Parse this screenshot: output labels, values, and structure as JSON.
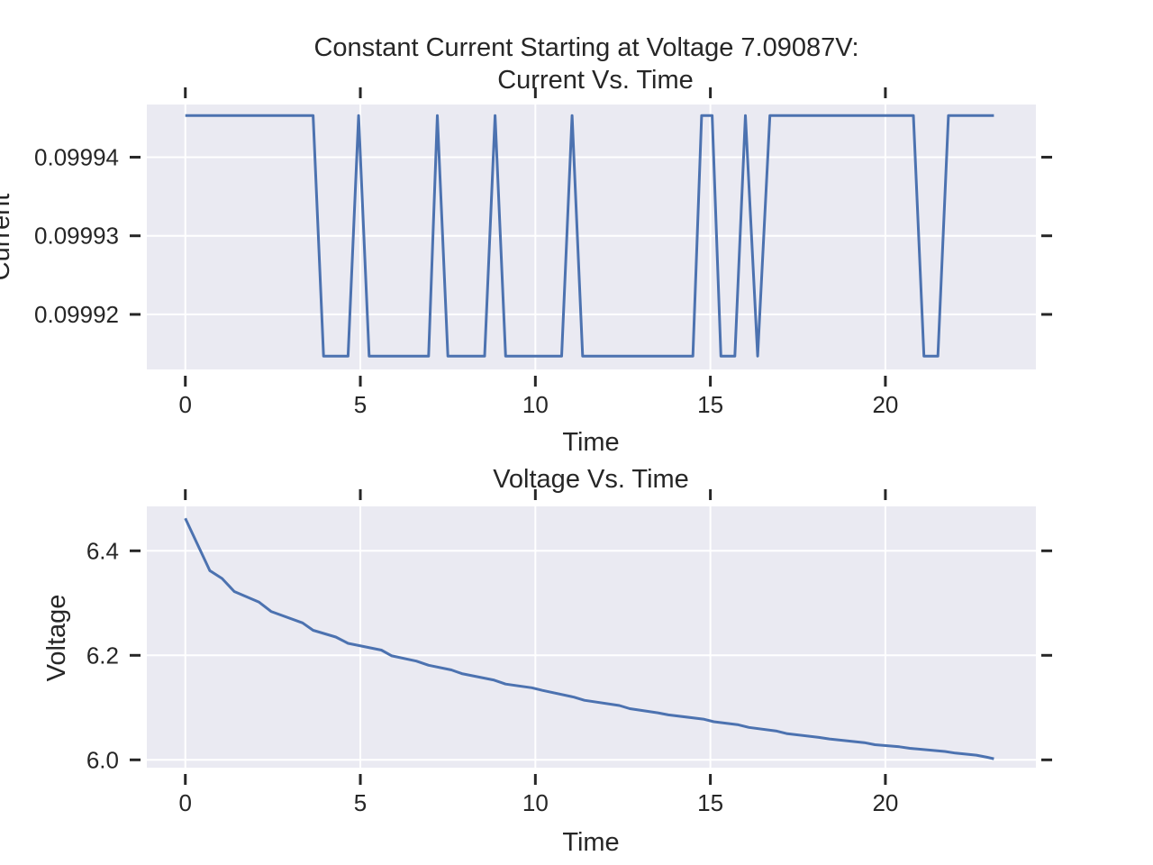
{
  "figure": {
    "suptitle": "Constant Current Starting at Voltage 7.09087V:"
  },
  "colors": {
    "line": "#4c72b0",
    "axes_bg": "#eaeaf2",
    "grid": "#ffffff",
    "text": "#262626"
  },
  "chart_data": [
    {
      "type": "line",
      "title": "Current Vs. Time",
      "xlabel": "Time",
      "ylabel": "Current",
      "xlim": [
        -1.1,
        24.3
      ],
      "ylim": [
        0.099913,
        0.0999467
      ],
      "xticks": [
        0,
        5,
        10,
        15,
        20
      ],
      "xtick_labels": [
        "0",
        "5",
        "10",
        "15",
        "20"
      ],
      "yticks": [
        0.09992,
        0.09993,
        0.09994
      ],
      "ytick_labels": [
        "0.09992",
        "0.09993",
        "0.09994"
      ],
      "grid": true,
      "series": [
        {
          "x": [
            0,
            3.65,
            3.95,
            4.65,
            4.95,
            5.25,
            6.95,
            7.2,
            7.5,
            8.55,
            8.85,
            9.15,
            10.75,
            11.05,
            11.35,
            14.5,
            14.75,
            15.05,
            15.3,
            15.7,
            16.0,
            16.35,
            16.7,
            20.8,
            21.1,
            21.5,
            21.8,
            23.1
          ],
          "y": [
            0.0999453,
            0.0999453,
            0.0999147,
            0.0999147,
            0.0999453,
            0.0999147,
            0.0999147,
            0.0999453,
            0.0999147,
            0.0999147,
            0.0999453,
            0.0999147,
            0.0999147,
            0.0999453,
            0.0999147,
            0.0999147,
            0.0999453,
            0.0999453,
            0.0999147,
            0.0999147,
            0.0999453,
            0.0999147,
            0.0999453,
            0.0999453,
            0.0999147,
            0.0999147,
            0.0999453,
            0.0999453
          ]
        }
      ]
    },
    {
      "type": "line",
      "title": "Voltage Vs. Time",
      "xlabel": "Time",
      "ylabel": "Voltage",
      "xlim": [
        -1.1,
        24.3
      ],
      "ylim": [
        5.985,
        6.485
      ],
      "xticks": [
        0,
        5,
        10,
        15,
        20
      ],
      "xtick_labels": [
        "0",
        "5",
        "10",
        "15",
        "20"
      ],
      "yticks": [
        6.0,
        6.2,
        6.4
      ],
      "ytick_labels": [
        "6.0",
        "6.2",
        "6.4"
      ],
      "grid": true,
      "series": [
        {
          "x": [
            0,
            0.7,
            1.05,
            1.4,
            2.1,
            2.45,
            3.35,
            3.65,
            4.3,
            4.65,
            5.6,
            5.9,
            6.6,
            6.95,
            7.6,
            7.9,
            8.8,
            9.15,
            9.9,
            10.2,
            11.1,
            11.4,
            12.4,
            12.7,
            13.5,
            13.8,
            14.8,
            15.1,
            15.8,
            16.1,
            16.9,
            17.2,
            18.1,
            18.4,
            19.4,
            19.7,
            20.4,
            20.7,
            21.7,
            22.0,
            22.6,
            22.9,
            23.1
          ],
          "y": [
            6.462,
            6.362,
            6.347,
            6.322,
            6.302,
            6.284,
            6.262,
            6.248,
            6.235,
            6.223,
            6.21,
            6.199,
            6.189,
            6.181,
            6.172,
            6.165,
            6.153,
            6.145,
            6.138,
            6.133,
            6.12,
            6.114,
            6.104,
            6.098,
            6.09,
            6.086,
            6.078,
            6.073,
            6.067,
            6.062,
            6.055,
            6.05,
            6.043,
            6.04,
            6.033,
            6.029,
            6.025,
            6.022,
            6.016,
            6.013,
            6.009,
            6.005,
            6.002
          ]
        }
      ]
    }
  ]
}
